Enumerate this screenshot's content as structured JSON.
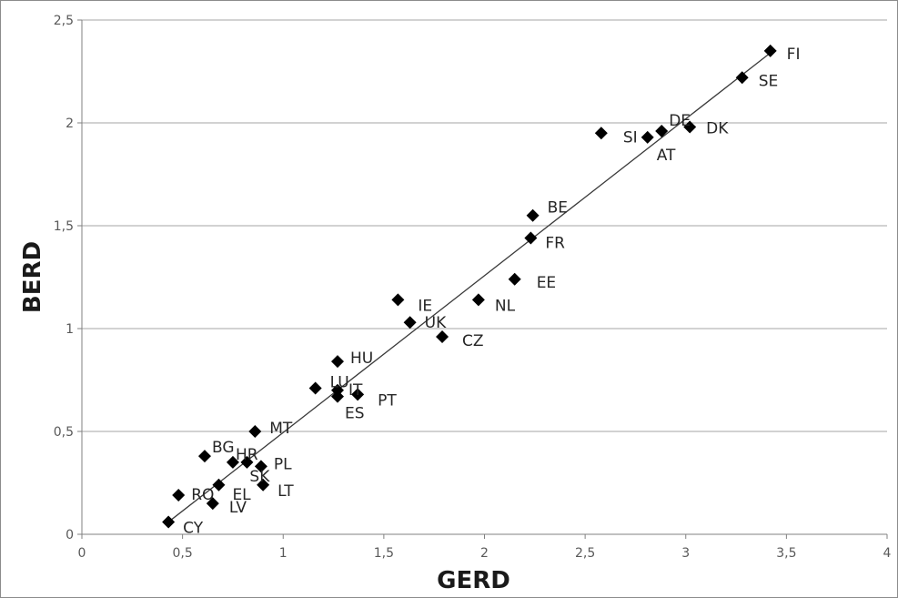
{
  "chart_data": {
    "type": "scatter",
    "title": "",
    "xlabel": "GERD",
    "ylabel": "BERD",
    "xlim": [
      0,
      4
    ],
    "ylim": [
      0,
      2.5
    ],
    "x_ticks": [
      "0",
      "0,5",
      "1",
      "1,5",
      "2",
      "2,5",
      "3",
      "3,5",
      "4"
    ],
    "y_ticks": [
      "0",
      "0,5",
      "1",
      "1,5",
      "2",
      "2,5"
    ],
    "grid": "horizontal",
    "legend": "none",
    "marker_color": "#000000",
    "gridline_color": "#a6a6a6",
    "trendline": {
      "type": "linear",
      "x": [
        0.43,
        3.42
      ],
      "y": [
        0.06,
        2.34
      ]
    },
    "points": [
      {
        "label": "FI",
        "x": 3.42,
        "y": 2.35
      },
      {
        "label": "SE",
        "x": 3.28,
        "y": 2.22
      },
      {
        "label": "DE",
        "x": 2.88,
        "y": 1.96
      },
      {
        "label": "DK",
        "x": 3.02,
        "y": 1.98
      },
      {
        "label": "SI",
        "x": 2.58,
        "y": 1.95
      },
      {
        "label": "AT",
        "x": 2.81,
        "y": 1.93
      },
      {
        "label": "BE",
        "x": 2.24,
        "y": 1.55
      },
      {
        "label": "FR",
        "x": 2.23,
        "y": 1.44
      },
      {
        "label": "EE",
        "x": 2.15,
        "y": 1.24
      },
      {
        "label": "NL",
        "x": 1.97,
        "y": 1.14
      },
      {
        "label": "IE",
        "x": 1.57,
        "y": 1.14
      },
      {
        "label": "UK",
        "x": 1.63,
        "y": 1.03
      },
      {
        "label": "CZ",
        "x": 1.79,
        "y": 0.96
      },
      {
        "label": "HU",
        "x": 1.27,
        "y": 0.84
      },
      {
        "label": "LU",
        "x": 1.16,
        "y": 0.71
      },
      {
        "label": "IT",
        "x": 1.27,
        "y": 0.7
      },
      {
        "label": "ES",
        "x": 1.27,
        "y": 0.67
      },
      {
        "label": "PT",
        "x": 1.37,
        "y": 0.68
      },
      {
        "label": "MT",
        "x": 0.86,
        "y": 0.5
      },
      {
        "label": "BG",
        "x": 0.61,
        "y": 0.38
      },
      {
        "label": "HR",
        "x": 0.75,
        "y": 0.35
      },
      {
        "label": "SK",
        "x": 0.82,
        "y": 0.35
      },
      {
        "label": "PL",
        "x": 0.89,
        "y": 0.33
      },
      {
        "label": "EL",
        "x": 0.68,
        "y": 0.24
      },
      {
        "label": "LT",
        "x": 0.9,
        "y": 0.24
      },
      {
        "label": "RO",
        "x": 0.48,
        "y": 0.19
      },
      {
        "label": "LV",
        "x": 0.65,
        "y": 0.15
      },
      {
        "label": "CY",
        "x": 0.43,
        "y": 0.06
      }
    ]
  }
}
